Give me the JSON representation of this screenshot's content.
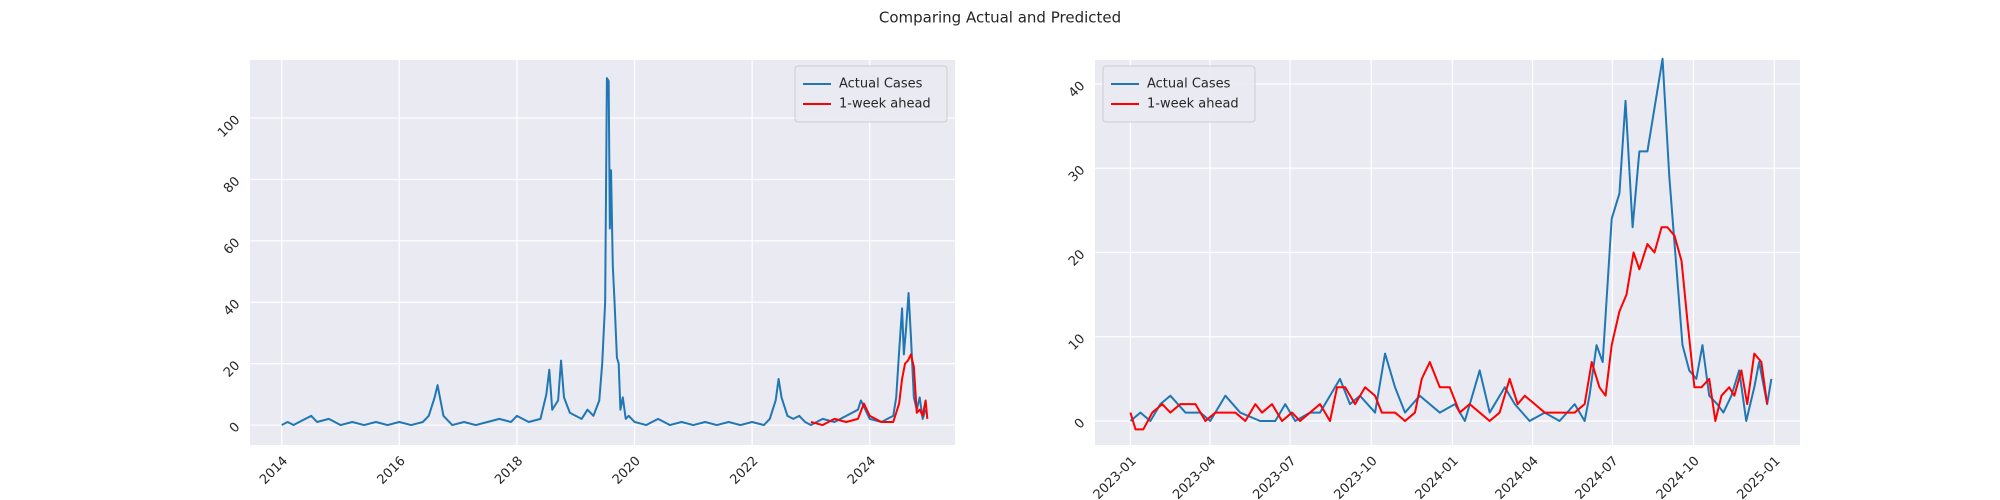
{
  "title": "Comparing Actual and Predicted",
  "chart_data": [
    {
      "type": "line",
      "legend": "upper right",
      "grid": true,
      "xlim": [
        2013.46,
        2025.45
      ],
      "ylim": [
        -6.5,
        118.9
      ],
      "xticks": [
        2014,
        2016,
        2018,
        2020,
        2022,
        2024
      ],
      "yticks": [
        0,
        20,
        40,
        60,
        80,
        100
      ],
      "series": [
        {
          "name": "Actual Cases",
          "color": "#1f77b4",
          "x": [
            2014.0,
            2014.1,
            2014.2,
            2014.4,
            2014.5,
            2014.6,
            2014.8,
            2015.0,
            2015.2,
            2015.4,
            2015.6,
            2015.8,
            2016.0,
            2016.2,
            2016.4,
            2016.5,
            2016.6,
            2016.65,
            2016.7,
            2016.75,
            2016.9,
            2017.1,
            2017.3,
            2017.5,
            2017.7,
            2017.9,
            2018.0,
            2018.2,
            2018.4,
            2018.5,
            2018.55,
            2018.6,
            2018.7,
            2018.75,
            2018.8,
            2018.9,
            2019.0,
            2019.1,
            2019.2,
            2019.3,
            2019.4,
            2019.45,
            2019.5,
            2019.53,
            2019.56,
            2019.58,
            2019.6,
            2019.63,
            2019.66,
            2019.7,
            2019.73,
            2019.76,
            2019.8,
            2019.85,
            2019.9,
            2020.0,
            2020.2,
            2020.4,
            2020.6,
            2020.8,
            2021.0,
            2021.2,
            2021.4,
            2021.6,
            2021.8,
            2022.0,
            2022.2,
            2022.3,
            2022.4,
            2022.45,
            2022.5,
            2022.6,
            2022.7,
            2022.8,
            2022.9,
            2023.0,
            2023.2,
            2023.4,
            2023.6,
            2023.8,
            2023.85,
            2024.0,
            2024.2,
            2024.4,
            2024.45,
            2024.5,
            2024.55,
            2024.58,
            2024.62,
            2024.66,
            2024.7,
            2024.75,
            2024.8,
            2024.85,
            2024.9,
            2024.95
          ],
          "values": [
            0,
            1,
            0,
            2,
            3,
            1,
            2,
            0,
            1,
            0,
            1,
            0,
            1,
            0,
            1,
            3,
            9,
            13,
            8,
            3,
            0,
            1,
            0,
            1,
            2,
            1,
            3,
            1,
            2,
            10,
            18,
            5,
            8,
            21,
            9,
            4,
            3,
            2,
            5,
            3,
            8,
            20,
            40,
            113,
            112,
            64,
            83,
            52,
            40,
            22,
            20,
            5,
            9,
            2,
            3,
            1,
            0,
            2,
            0,
            1,
            0,
            1,
            0,
            1,
            0,
            1,
            0,
            2,
            8,
            15,
            9,
            3,
            2,
            3,
            1,
            0,
            2,
            1,
            3,
            5,
            8,
            2,
            1,
            3,
            9,
            24,
            38,
            23,
            32,
            43,
            29,
            9,
            5,
            9,
            2,
            5
          ]
        },
        {
          "name": "1-week ahead",
          "color": "#ff0000",
          "x": [
            2023.0,
            2023.2,
            2023.4,
            2023.6,
            2023.8,
            2023.9,
            2024.0,
            2024.2,
            2024.4,
            2024.5,
            2024.55,
            2024.6,
            2024.65,
            2024.7,
            2024.75,
            2024.8,
            2024.85,
            2024.9,
            2024.95,
            2024.98
          ],
          "values": [
            1,
            0,
            2,
            1,
            2,
            7,
            3,
            1,
            1,
            7,
            15,
            20,
            21,
            23,
            19,
            4,
            5,
            3,
            8,
            2
          ]
        }
      ]
    },
    {
      "type": "line",
      "legend": "upper left",
      "grid": true,
      "xlim": [
        2022.89,
        2025.08
      ],
      "ylim": [
        -2.85,
        42.85
      ],
      "xticks": [
        {
          "value": 2023.0,
          "label": "2023-01"
        },
        {
          "value": 2023.247,
          "label": "2023-04"
        },
        {
          "value": 2023.496,
          "label": "2023-07"
        },
        {
          "value": 2023.748,
          "label": "2023-10"
        },
        {
          "value": 2024.0,
          "label": "2024-01"
        },
        {
          "value": 2024.249,
          "label": "2024-04"
        },
        {
          "value": 2024.497,
          "label": "2024-07"
        },
        {
          "value": 2024.749,
          "label": "2024-10"
        },
        {
          "value": 2025.0,
          "label": "2025-01"
        }
      ],
      "yticks": [
        0,
        10,
        20,
        30,
        40
      ],
      "series": [
        {
          "name": "Actual Cases",
          "color": "#1f77b4",
          "x": [
            2023.0,
            2023.031,
            2023.062,
            2023.093,
            2023.124,
            2023.171,
            2023.217,
            2023.248,
            2023.295,
            2023.341,
            2023.403,
            2023.45,
            2023.481,
            2023.512,
            2023.558,
            2023.589,
            2023.62,
            2023.651,
            2023.682,
            2023.713,
            2023.76,
            2023.791,
            2023.822,
            2023.853,
            2023.899,
            2023.961,
            2024.008,
            2024.039,
            2024.085,
            2024.116,
            2024.163,
            2024.194,
            2024.24,
            2024.287,
            2024.333,
            2024.38,
            2024.411,
            2024.426,
            2024.448,
            2024.467,
            2024.495,
            2024.519,
            2024.538,
            2024.56,
            2024.581,
            2024.606,
            2024.653,
            2024.674,
            2024.715,
            2024.736,
            2024.758,
            2024.777,
            2024.798,
            2024.823,
            2024.842,
            2024.867,
            2024.891,
            2024.913,
            2024.938,
            2024.953,
            2024.978,
            2024.991
          ],
          "values": [
            0,
            1,
            0,
            2,
            3,
            1,
            1,
            0,
            3,
            1,
            0,
            0,
            2,
            0,
            1,
            1,
            3,
            5,
            2,
            3,
            1,
            8,
            4,
            1,
            3,
            1,
            2,
            0,
            6,
            1,
            4,
            2,
            0,
            1,
            0,
            2,
            0,
            3,
            9,
            7,
            24,
            27,
            38,
            23,
            32,
            32,
            43,
            29,
            9,
            6,
            5,
            9,
            3,
            2,
            1,
            3,
            6,
            0,
            4,
            7,
            2,
            5
          ]
        },
        {
          "name": "1-week ahead",
          "color": "#ff0000",
          "x": [
            2023.0,
            2023.016,
            2023.04,
            2023.068,
            2023.099,
            2023.124,
            2023.155,
            2023.202,
            2023.233,
            2023.264,
            2023.326,
            2023.357,
            2023.388,
            2023.409,
            2023.44,
            2023.471,
            2023.502,
            2023.527,
            2023.558,
            2023.589,
            2023.62,
            2023.642,
            2023.667,
            2023.698,
            2023.729,
            2023.76,
            2023.781,
            2023.822,
            2023.853,
            2023.884,
            2023.905,
            2023.93,
            2023.961,
            2023.992,
            2024.023,
            2024.054,
            2024.085,
            2024.116,
            2024.147,
            2024.178,
            2024.203,
            2024.225,
            2024.256,
            2024.287,
            2024.333,
            2024.38,
            2024.411,
            2024.433,
            2024.457,
            2024.476,
            2024.495,
            2024.519,
            2024.541,
            2024.563,
            2024.581,
            2024.606,
            2024.628,
            2024.65,
            2024.668,
            2024.69,
            2024.712,
            2024.73,
            2024.752,
            2024.774,
            2024.798,
            2024.817,
            2024.836,
            2024.86,
            2024.876,
            2024.898,
            2024.916,
            2024.938,
            2024.96,
            2024.978
          ],
          "values": [
            1,
            -1,
            -1,
            1,
            2,
            1,
            2,
            2,
            0,
            1,
            1,
            0,
            2,
            1,
            2,
            0,
            1,
            0,
            1,
            2,
            0,
            4,
            4,
            2,
            4,
            3,
            1,
            1,
            0,
            1,
            5,
            7,
            4,
            4,
            1,
            2,
            1,
            0,
            1,
            5,
            2,
            3,
            2,
            1,
            1,
            1,
            2,
            7,
            4,
            3,
            9,
            13,
            15,
            20,
            18,
            21,
            20,
            23,
            23,
            22,
            19,
            12,
            4,
            4,
            5,
            0,
            3,
            4,
            3,
            6,
            2,
            8,
            7,
            2
          ]
        }
      ]
    }
  ]
}
